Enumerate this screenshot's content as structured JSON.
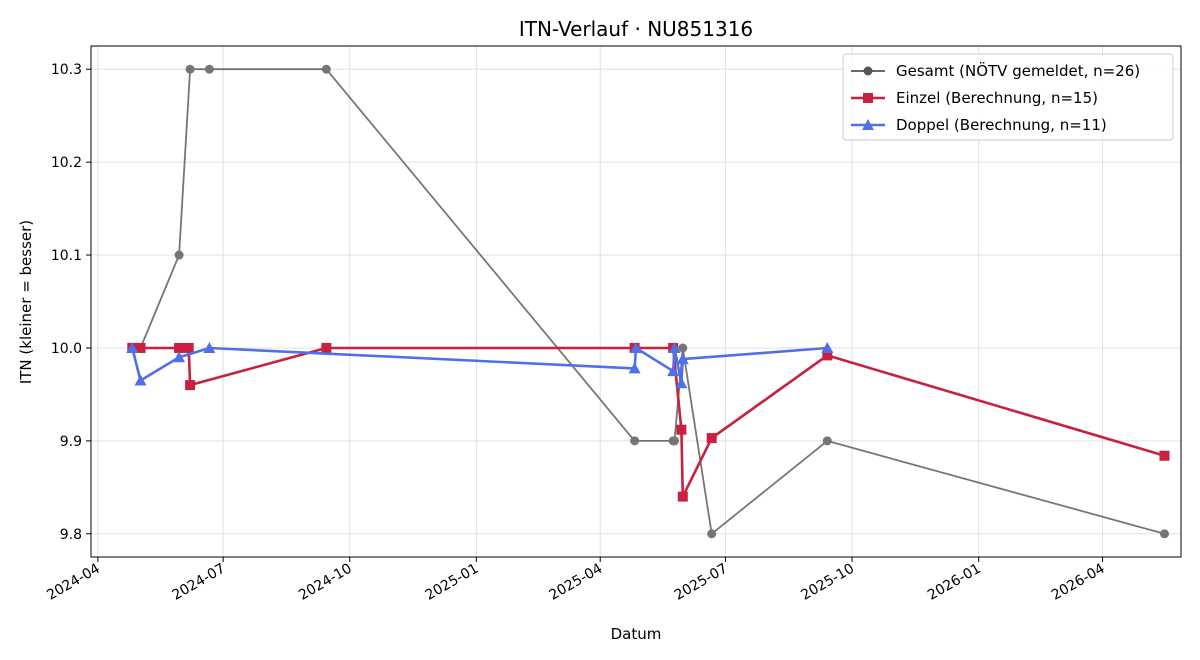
{
  "chart_data": {
    "type": "line",
    "title": "ITN-Verlauf · NU851316",
    "xlabel": "Datum",
    "ylabel": "ITN  (kleiner = besser)",
    "xlim": [
      "2024-03-27",
      "2026-05-28"
    ],
    "ylim": [
      9.775,
      10.325
    ],
    "x_ticks": [
      "2024-04",
      "2024-07",
      "2024-10",
      "2025-01",
      "2025-04",
      "2025-07",
      "2025-10",
      "2026-01",
      "2026-04"
    ],
    "y_ticks": [
      "9.8",
      "9.9",
      "10.0",
      "10.1",
      "10.2",
      "10.3"
    ],
    "grid": true,
    "legend_position": "top-right",
    "series": [
      {
        "name": "Gesamt (NÖTV gemeldet, n=26)",
        "color": "#555555",
        "marker": "circle",
        "points": [
          {
            "x": "2024-04-26",
            "y": 10.0
          },
          {
            "x": "2024-05-02",
            "y": 10.0
          },
          {
            "x": "2024-05-30",
            "y": 10.1
          },
          {
            "x": "2024-06-07",
            "y": 10.3
          },
          {
            "x": "2024-06-21",
            "y": 10.3
          },
          {
            "x": "2024-09-14",
            "y": 10.3
          },
          {
            "x": "2025-04-26",
            "y": 9.9
          },
          {
            "x": "2025-05-24",
            "y": 9.9
          },
          {
            "x": "2025-05-25",
            "y": 9.9
          },
          {
            "x": "2025-05-31",
            "y": 10.0
          },
          {
            "x": "2025-06-21",
            "y": 9.8
          },
          {
            "x": "2025-09-13",
            "y": 9.9
          },
          {
            "x": "2026-05-16",
            "y": 9.8
          }
        ]
      },
      {
        "name": "Einzel (Berechnung, n=15)",
        "color": "#c8203e",
        "marker": "square",
        "points": [
          {
            "x": "2024-04-26",
            "y": 10.0
          },
          {
            "x": "2024-05-02",
            "y": 10.0
          },
          {
            "x": "2024-05-30",
            "y": 10.0
          },
          {
            "x": "2024-06-06",
            "y": 10.0
          },
          {
            "x": "2024-06-07",
            "y": 9.96
          },
          {
            "x": "2024-09-14",
            "y": 10.0
          },
          {
            "x": "2025-04-26",
            "y": 10.0
          },
          {
            "x": "2025-05-24",
            "y": 10.0
          },
          {
            "x": "2025-05-30",
            "y": 9.912
          },
          {
            "x": "2025-05-31",
            "y": 9.84
          },
          {
            "x": "2025-06-21",
            "y": 9.903
          },
          {
            "x": "2025-09-13",
            "y": 9.992
          },
          {
            "x": "2026-05-16",
            "y": 9.884
          }
        ]
      },
      {
        "name": "Doppel (Berechnung, n=11)",
        "color": "#5070e8",
        "marker": "triangle",
        "points": [
          {
            "x": "2024-04-26",
            "y": 10.0
          },
          {
            "x": "2024-05-02",
            "y": 9.965
          },
          {
            "x": "2024-05-30",
            "y": 9.99
          },
          {
            "x": "2024-06-21",
            "y": 10.0
          },
          {
            "x": "2025-04-26",
            "y": 9.978
          },
          {
            "x": "2025-04-27",
            "y": 10.0
          },
          {
            "x": "2025-05-24",
            "y": 9.975
          },
          {
            "x": "2025-05-25",
            "y": 10.0
          },
          {
            "x": "2025-05-30",
            "y": 9.962
          },
          {
            "x": "2025-05-31",
            "y": 9.988
          },
          {
            "x": "2025-09-13",
            "y": 10.0
          }
        ]
      }
    ]
  }
}
